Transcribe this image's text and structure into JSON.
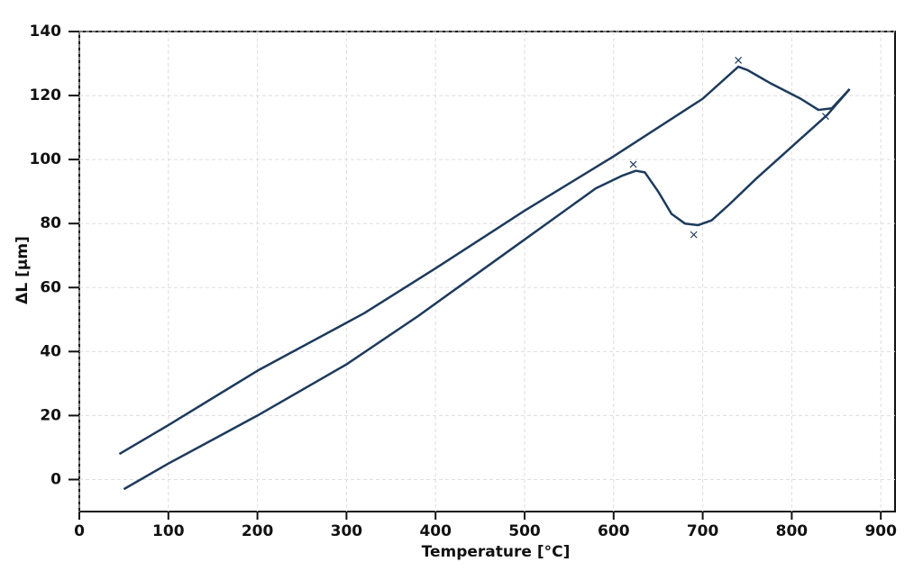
{
  "chart_data": {
    "type": "line",
    "xlabel": "Temperature [°C]",
    "ylabel": "ΔL [µm]",
    "xlim": [
      0,
      916
    ],
    "ylim": [
      -10,
      140
    ],
    "xticks": [
      0,
      100,
      200,
      300,
      400,
      500,
      600,
      700,
      800,
      900
    ],
    "yticks": [
      0,
      20,
      40,
      60,
      80,
      100,
      120,
      140
    ],
    "grid": true,
    "series": [
      {
        "color": "#1d3a5c",
        "x": [
          45,
          100,
          200,
          320,
          400,
          500,
          600,
          700,
          740,
          750,
          775,
          810,
          830,
          845,
          865
        ],
        "values": [
          8,
          17,
          34,
          52,
          66,
          84,
          101,
          119,
          129,
          128,
          124,
          119,
          115.5,
          116,
          122
        ]
      },
      {
        "color": "#1d3a5c",
        "x": [
          50,
          100,
          200,
          300,
          380,
          480,
          580,
          610,
          625,
          635,
          650,
          665,
          680,
          695,
          710,
          730,
          760,
          800,
          840,
          865
        ],
        "values": [
          -3,
          5,
          20,
          36,
          51,
          71,
          91,
          95,
          96.5,
          96,
          90,
          83,
          80,
          79.5,
          81,
          86,
          94,
          104,
          114,
          122
        ]
      }
    ],
    "markers": {
      "color": "#1d3a5c",
      "x": [
        740,
        622,
        690,
        838
      ],
      "values": [
        131,
        98.5,
        76.5,
        113.5
      ]
    }
  }
}
